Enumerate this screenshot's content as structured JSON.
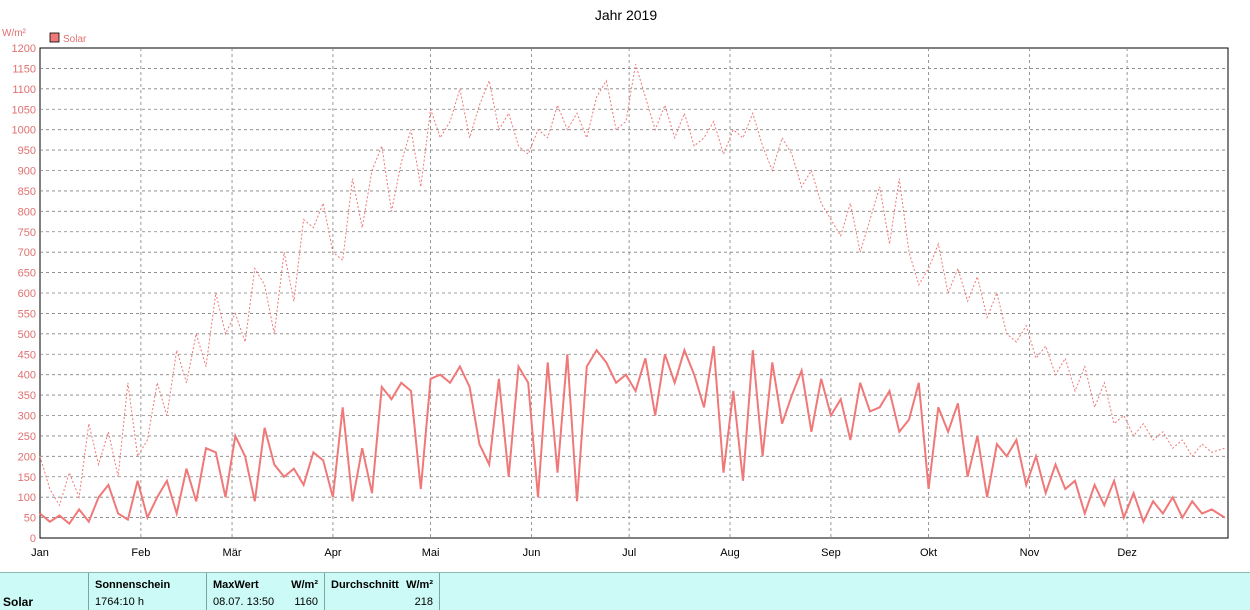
{
  "chart_data": {
    "type": "line",
    "title": "Jahr 2019",
    "ylabel": "W/m²",
    "ylim": [
      0,
      1200
    ],
    "y_ticks": [
      0,
      50,
      100,
      150,
      200,
      250,
      300,
      350,
      400,
      450,
      500,
      550,
      600,
      650,
      700,
      750,
      800,
      850,
      900,
      950,
      1000,
      1050,
      1100,
      1150,
      1200
    ],
    "x_range_days": [
      0,
      365
    ],
    "month_labels": [
      "Jan",
      "Feb",
      "Mär",
      "Apr",
      "Mai",
      "Jun",
      "Jul",
      "Aug",
      "Sep",
      "Okt",
      "Nov",
      "Dez"
    ],
    "month_start_days": [
      0,
      31,
      59,
      90,
      120,
      151,
      181,
      212,
      243,
      273,
      304,
      334
    ],
    "grid": true,
    "legend": {
      "position": "top-left",
      "entries": [
        "Solar"
      ]
    },
    "colors": {
      "series": "#f07878",
      "grid": "#808080"
    },
    "series": [
      {
        "name": "Solar",
        "style": "solid",
        "x_days": [
          0,
          3,
          6,
          9,
          12,
          15,
          18,
          21,
          24,
          27,
          30,
          33,
          36,
          39,
          42,
          45,
          48,
          51,
          54,
          57,
          60,
          63,
          66,
          69,
          72,
          75,
          78,
          81,
          84,
          87,
          90,
          93,
          96,
          99,
          102,
          105,
          108,
          111,
          114,
          117,
          120,
          123,
          126,
          129,
          132,
          135,
          138,
          141,
          144,
          147,
          150,
          153,
          156,
          159,
          162,
          165,
          168,
          171,
          174,
          177,
          180,
          183,
          186,
          189,
          192,
          195,
          198,
          201,
          204,
          207,
          210,
          213,
          216,
          219,
          222,
          225,
          228,
          231,
          234,
          237,
          240,
          243,
          246,
          249,
          252,
          255,
          258,
          261,
          264,
          267,
          270,
          273,
          276,
          279,
          282,
          285,
          288,
          291,
          294,
          297,
          300,
          303,
          306,
          309,
          312,
          315,
          318,
          321,
          324,
          327,
          330,
          333,
          336,
          339,
          342,
          345,
          348,
          351,
          354,
          357,
          360,
          364
        ],
        "values": [
          60,
          40,
          55,
          35,
          70,
          40,
          100,
          130,
          60,
          45,
          140,
          50,
          100,
          140,
          60,
          170,
          90,
          220,
          210,
          100,
          250,
          200,
          90,
          270,
          180,
          150,
          170,
          130,
          210,
          190,
          100,
          320,
          90,
          220,
          110,
          370,
          340,
          380,
          360,
          120,
          390,
          400,
          380,
          420,
          370,
          230,
          180,
          390,
          150,
          420,
          380,
          100,
          430,
          160,
          450,
          90,
          420,
          460,
          430,
          380,
          400,
          360,
          440,
          300,
          450,
          380,
          460,
          400,
          320,
          470,
          160,
          360,
          140,
          460,
          200,
          430,
          280,
          350,
          410,
          260,
          390,
          300,
          340,
          240,
          380,
          310,
          320,
          360,
          260,
          290,
          380,
          120,
          320,
          260,
          330,
          150,
          250,
          100,
          230,
          200,
          240,
          130,
          200,
          110,
          180,
          120,
          140,
          60,
          130,
          80,
          140,
          50,
          110,
          40,
          90,
          60,
          100,
          50,
          90,
          60,
          70,
          50
        ]
      },
      {
        "name": "MaxWert",
        "style": "dashed",
        "x_days": [
          0,
          3,
          6,
          9,
          12,
          15,
          18,
          21,
          24,
          27,
          30,
          33,
          36,
          39,
          42,
          45,
          48,
          51,
          54,
          57,
          60,
          63,
          66,
          69,
          72,
          75,
          78,
          81,
          84,
          87,
          90,
          93,
          96,
          99,
          102,
          105,
          108,
          111,
          114,
          117,
          120,
          123,
          126,
          129,
          132,
          135,
          138,
          141,
          144,
          147,
          150,
          153,
          156,
          159,
          162,
          165,
          168,
          171,
          174,
          177,
          180,
          183,
          186,
          189,
          192,
          195,
          198,
          201,
          204,
          207,
          210,
          213,
          216,
          219,
          222,
          225,
          228,
          231,
          234,
          237,
          240,
          243,
          246,
          249,
          252,
          255,
          258,
          261,
          264,
          267,
          270,
          273,
          276,
          279,
          282,
          285,
          288,
          291,
          294,
          297,
          300,
          303,
          306,
          309,
          312,
          315,
          318,
          321,
          324,
          327,
          330,
          333,
          336,
          339,
          342,
          345,
          348,
          351,
          354,
          357,
          360,
          364
        ],
        "values": [
          200,
          120,
          80,
          160,
          100,
          280,
          180,
          260,
          150,
          380,
          200,
          240,
          380,
          300,
          460,
          380,
          500,
          420,
          600,
          500,
          550,
          480,
          660,
          620,
          500,
          700,
          580,
          780,
          760,
          820,
          700,
          680,
          880,
          760,
          900,
          960,
          800,
          920,
          1000,
          860,
          1050,
          980,
          1020,
          1100,
          980,
          1060,
          1120,
          1000,
          1040,
          960,
          940,
          1000,
          980,
          1060,
          1000,
          1040,
          980,
          1080,
          1120,
          1000,
          1020,
          1160,
          1080,
          1000,
          1060,
          980,
          1040,
          960,
          980,
          1020,
          940,
          1000,
          980,
          1040,
          960,
          900,
          980,
          940,
          860,
          900,
          820,
          780,
          740,
          820,
          700,
          780,
          860,
          720,
          880,
          700,
          620,
          660,
          720,
          600,
          660,
          580,
          640,
          540,
          600,
          500,
          480,
          520,
          440,
          470,
          400,
          440,
          360,
          420,
          320,
          380,
          280,
          300,
          250,
          280,
          240,
          260,
          220,
          240,
          200,
          230,
          210,
          220
        ]
      }
    ]
  },
  "footer": {
    "row_label": "Solar",
    "col1_header": "Sonnenschein",
    "col1_value": "1764:10 h",
    "col2_header": "MaxWert",
    "col2_unit": "W/m²",
    "col2_date": "08.07.  13:50",
    "col2_value": "1160",
    "col3_header": "Durchschnitt",
    "col3_unit": "W/m²",
    "col3_value": "218"
  }
}
